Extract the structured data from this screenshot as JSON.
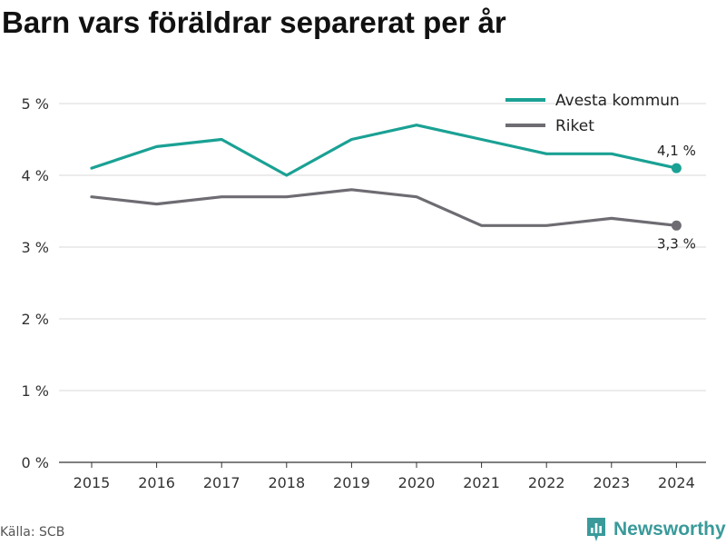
{
  "source": "Källa: SCB",
  "brand": {
    "name": "Newsworthy",
    "icon": "newsworthy-logo-icon",
    "color": "#3a9a9a"
  },
  "chart_data": {
    "type": "line",
    "title": "Barn vars föräldrar separerat per år",
    "xlabel": "",
    "ylabel": "",
    "x": [
      "2015",
      "2016",
      "2017",
      "2018",
      "2019",
      "2020",
      "2021",
      "2022",
      "2023",
      "2024"
    ],
    "ylim": [
      0,
      5
    ],
    "yticks": [
      0,
      1,
      2,
      3,
      4,
      5
    ],
    "ytick_labels": [
      "0 %",
      "1 %",
      "2 %",
      "3 %",
      "4 %",
      "5 %"
    ],
    "grid": "horizontal",
    "legend": "top-right",
    "series": [
      {
        "name": "Avesta kommun",
        "color": "#1aa194",
        "values": [
          4.1,
          4.4,
          4.5,
          4.0,
          4.5,
          4.7,
          4.5,
          4.3,
          4.3,
          4.1
        ],
        "end_label": "4,1 %"
      },
      {
        "name": "Riket",
        "color": "#6e6c72",
        "values": [
          3.7,
          3.6,
          3.7,
          3.7,
          3.8,
          3.7,
          3.3,
          3.3,
          3.4,
          3.3
        ],
        "end_label": "3,3 %"
      }
    ]
  }
}
